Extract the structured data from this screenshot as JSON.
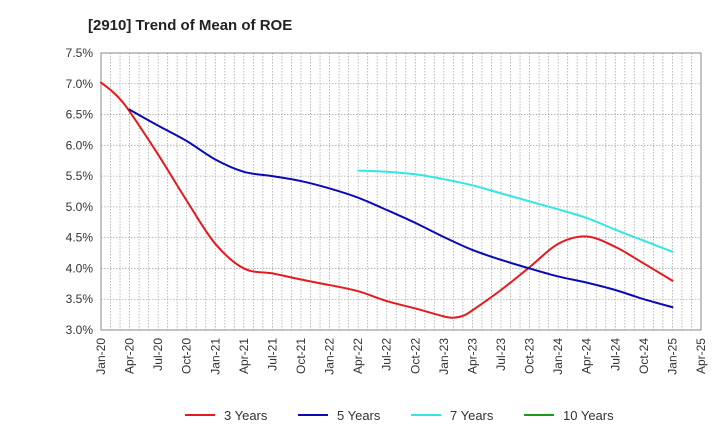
{
  "chart_data": {
    "type": "line",
    "title": "[2910]  Trend of Mean of ROE",
    "xlabel": "",
    "ylabel": "",
    "x_ticks": [
      "Jan-20",
      "Apr-20",
      "Jul-20",
      "Oct-20",
      "Jan-21",
      "Apr-21",
      "Jul-21",
      "Oct-21",
      "Jan-22",
      "Apr-22",
      "Jul-22",
      "Oct-22",
      "Jan-23",
      "Apr-23",
      "Jul-23",
      "Oct-23",
      "Jan-24",
      "Apr-24",
      "Jul-24",
      "Oct-24",
      "Jan-25",
      "Apr-25"
    ],
    "y_ticks": [
      "3.0%",
      "3.5%",
      "4.0%",
      "4.5%",
      "5.0%",
      "5.5%",
      "6.0%",
      "6.5%",
      "7.0%",
      "7.5%"
    ],
    "ylim": [
      3.0,
      7.5
    ],
    "grid": true,
    "legend_position": "bottom",
    "series": [
      {
        "name": "3 Years",
        "color": "#e41a1c",
        "x": [
          "Jan-20",
          "Feb-20",
          "Mar-20",
          "Apr-20",
          "Jul-20",
          "Oct-20",
          "Jan-21",
          "Apr-21",
          "Jul-21",
          "Oct-21",
          "Jan-22",
          "Apr-22",
          "Jul-22",
          "Oct-22",
          "Jan-23",
          "Feb-23",
          "Mar-23",
          "Apr-23",
          "Jul-23",
          "Oct-23",
          "Jan-24",
          "Apr-24",
          "Jul-24",
          "Oct-24",
          "Jan-25"
        ],
        "values": [
          7.02,
          6.9,
          6.75,
          6.55,
          5.85,
          5.1,
          4.4,
          4.0,
          3.92,
          3.82,
          3.73,
          3.63,
          3.47,
          3.35,
          3.22,
          3.2,
          3.23,
          3.32,
          3.65,
          4.02,
          4.4,
          4.52,
          4.35,
          4.08,
          3.8
        ]
      },
      {
        "name": "5 Years",
        "color": "#0a0ab4",
        "x": [
          "Apr-20",
          "Jul-20",
          "Oct-20",
          "Jan-21",
          "Apr-21",
          "Jul-21",
          "Oct-21",
          "Jan-22",
          "Apr-22",
          "Jul-22",
          "Oct-22",
          "Jan-23",
          "Apr-23",
          "Jul-23",
          "Oct-23",
          "Jan-24",
          "Apr-24",
          "Jul-24",
          "Oct-24",
          "Jan-25"
        ],
        "values": [
          6.58,
          6.32,
          6.07,
          5.77,
          5.57,
          5.5,
          5.42,
          5.3,
          5.15,
          4.95,
          4.74,
          4.51,
          4.3,
          4.14,
          4.0,
          3.87,
          3.77,
          3.65,
          3.5,
          3.37
        ]
      },
      {
        "name": "7 Years",
        "color": "#33e5e5",
        "x": [
          "Apr-22",
          "Jul-22",
          "Oct-22",
          "Jan-23",
          "Apr-23",
          "Jul-23",
          "Oct-23",
          "Jan-24",
          "Apr-24",
          "Jul-24",
          "Oct-24",
          "Jan-25"
        ],
        "values": [
          5.59,
          5.57,
          5.53,
          5.45,
          5.35,
          5.22,
          5.09,
          4.96,
          4.82,
          4.63,
          4.45,
          4.27
        ]
      },
      {
        "name": "10 Years",
        "color": "#1a9a1a",
        "x": [],
        "values": []
      }
    ]
  }
}
